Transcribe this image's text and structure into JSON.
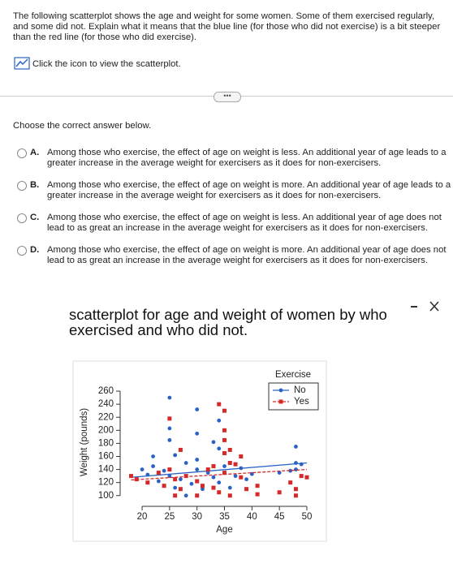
{
  "question": {
    "text": "The following scatterplot shows the age and weight for some women. Some of them exercised regularly, and some did not. Explain what it means that the blue line (for those who did not exercise) is a bit steeper than the red line (for those who did exercise).",
    "link": "Click the icon to view the scatterplot."
  },
  "prompt": "Choose the correct answer below.",
  "options": [
    {
      "letter": "A.",
      "text": "Among those who exercise, the effect of age on weight is less. An additional year of age leads to a greater increase in the average weight for exercisers as it does for non-exercisers."
    },
    {
      "letter": "B.",
      "text": "Among those who exercise, the effect of age on weight is more. An additional year of age leads to a greater increase in the average weight for exercisers as it does for non-exercisers."
    },
    {
      "letter": "C.",
      "text": "Among those who exercise, the effect of age on weight is less. An additional year of age does not lead to as great an increase in the average weight for exercisers as it does for non-exercisers."
    },
    {
      "letter": "D.",
      "text": "Among those who exercise, the effect of age on weight is more. An additional year of age does not lead to as great an increase in the average weight for exercisers as it does for non-exercisers."
    }
  ],
  "chart_data": {
    "type": "scatter",
    "title": "scatterplot for age and weight of women by who exercised and who did not.",
    "xlabel": "Age",
    "ylabel": "Weight (pounds)",
    "legend_title": "Exercise",
    "xlim": [
      16,
      52
    ],
    "ylim": [
      86,
      275
    ],
    "xticks": [
      20,
      25,
      30,
      35,
      40,
      45,
      50
    ],
    "yticks": [
      100,
      120,
      140,
      160,
      180,
      200,
      220,
      240,
      260
    ],
    "series": [
      {
        "name": "No",
        "color": "#2a63c4",
        "marker": "circle",
        "x": [
          25,
          30,
          25,
          30,
          25,
          34,
          33,
          34,
          22,
          26,
          20,
          22,
          24,
          25,
          27,
          28,
          30,
          32,
          33,
          35,
          36,
          38,
          37,
          40,
          29,
          31,
          26,
          23,
          48,
          48,
          49,
          48,
          47,
          45,
          21,
          28,
          34,
          36,
          39,
          30
        ],
        "y": [
          250,
          232,
          203,
          195,
          185,
          215,
          182,
          172,
          160,
          162,
          140,
          145,
          138,
          130,
          125,
          150,
          140,
          135,
          128,
          145,
          150,
          142,
          130,
          133,
          118,
          110,
          112,
          122,
          175,
          150,
          148,
          140,
          138,
          135,
          132,
          100,
          120,
          112,
          125,
          155
        ],
        "fit": {
          "x": [
            18,
            50
          ],
          "y": [
            128,
            150
          ]
        }
      },
      {
        "name": "Yes",
        "color": "#d42a2a",
        "marker": "square",
        "x": [
          34,
          35,
          25,
          35,
          35,
          27,
          36,
          38,
          35,
          18,
          19,
          21,
          23,
          25,
          26,
          27,
          28,
          30,
          31,
          32,
          33,
          34,
          35,
          36,
          37,
          38,
          39,
          41,
          41,
          45,
          47,
          48,
          48,
          49,
          50,
          26,
          30,
          36,
          33,
          24
        ],
        "y": [
          240,
          230,
          218,
          200,
          185,
          170,
          170,
          160,
          165,
          130,
          125,
          120,
          135,
          140,
          125,
          110,
          130,
          122,
          115,
          140,
          112,
          105,
          135,
          150,
          148,
          128,
          110,
          102,
          115,
          105,
          120,
          110,
          100,
          130,
          128,
          100,
          100,
          100,
          145,
          115
        ],
        "fit": {
          "x": [
            18,
            50
          ],
          "y": [
            124,
            140
          ]
        }
      }
    ]
  }
}
